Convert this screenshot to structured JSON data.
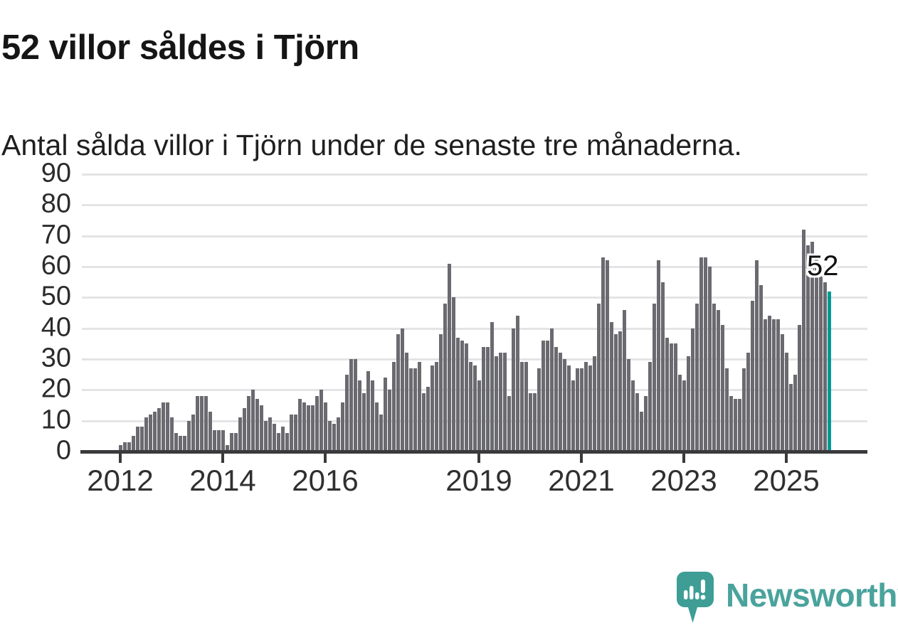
{
  "title": "52 villor såldes i Tjörn",
  "subtitle": "Antal sålda villor i Tjörn under de senaste tre månaderna.",
  "annotation": {
    "label": "52"
  },
  "logo": {
    "text": "Newsworthy"
  },
  "colors": {
    "bar": "#6a6a70",
    "highlight": "#009a95",
    "grid": "#e4e4e6",
    "axis": "#3a3a3c",
    "title_text": "#151515",
    "body_text": "#1f1f1f",
    "tick_text": "#303030",
    "logo_teal": "#4aa39c",
    "logo_bubble": "#3e9e96"
  },
  "chart_data": {
    "type": "bar",
    "title": "52 villor såldes i Tjörn",
    "subtitle": "Antal sålda villor i Tjörn under de senaste tre månaderna.",
    "unit": "antal sålda villor (rullande tre månader)",
    "x_start": "2012-01",
    "x_end": "2025-11",
    "x_interval": "month",
    "xlabel": "",
    "ylabel": "",
    "ylim": [
      0,
      90
    ],
    "grid": true,
    "y_ticks": [
      0,
      10,
      20,
      30,
      40,
      50,
      60,
      70,
      80,
      90
    ],
    "x_tick_labels": [
      "2012",
      "2014",
      "2016",
      "2019",
      "2021",
      "2023",
      "2025"
    ],
    "x_tick_month_index": [
      0,
      24,
      48,
      84,
      108,
      132,
      156
    ],
    "highlight_last": true,
    "last_value_label": "52",
    "values": [
      2,
      3,
      3,
      5,
      8,
      8,
      11,
      12,
      13,
      14,
      16,
      16,
      11,
      6,
      5,
      5,
      10,
      12,
      18,
      18,
      18,
      13,
      7,
      7,
      7,
      2,
      6,
      6,
      11,
      14,
      18,
      20,
      17,
      15,
      10,
      11,
      9,
      6,
      8,
      6,
      12,
      12,
      17,
      16,
      15,
      15,
      18,
      20,
      16,
      10,
      9,
      11,
      16,
      25,
      30,
      30,
      23,
      19,
      26,
      23,
      16,
      12,
      24,
      20,
      29,
      38,
      40,
      32,
      27,
      27,
      29,
      19,
      21,
      28,
      29,
      38,
      48,
      61,
      50,
      37,
      36,
      35,
      29,
      28,
      23,
      34,
      34,
      42,
      31,
      32,
      32,
      18,
      40,
      44,
      29,
      29,
      19,
      19,
      27,
      36,
      36,
      40,
      34,
      32,
      30,
      28,
      23,
      27,
      27,
      29,
      28,
      31,
      48,
      63,
      62,
      42,
      38,
      39,
      46,
      30,
      23,
      19,
      13,
      18,
      29,
      48,
      62,
      55,
      37,
      35,
      35,
      25,
      23,
      31,
      40,
      48,
      63,
      63,
      60,
      48,
      46,
      41,
      27,
      18,
      17,
      17,
      27,
      32,
      49,
      62,
      54,
      43,
      44,
      43,
      43,
      38,
      32,
      22,
      25,
      41,
      72,
      67,
      68,
      64,
      58,
      55,
      52
    ]
  }
}
